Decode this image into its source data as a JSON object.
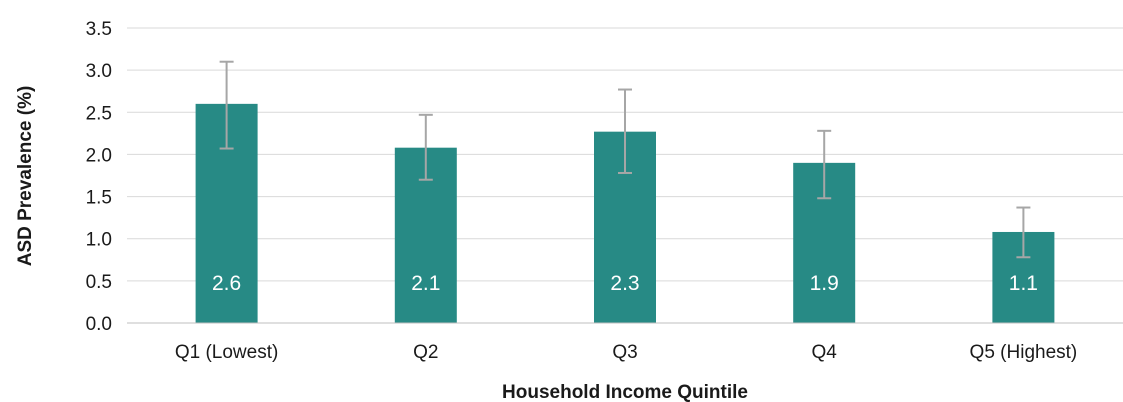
{
  "chart_data": {
    "type": "bar",
    "categories": [
      "Q1 (Lowest)",
      "Q2",
      "Q3",
      "Q4",
      "Q5 (Highest)"
    ],
    "values": [
      2.6,
      2.08,
      2.27,
      1.9,
      1.08
    ],
    "data_labels": [
      "2.6",
      "2.1",
      "2.3",
      "1.9",
      "1.1"
    ],
    "error_low": [
      2.07,
      1.7,
      1.78,
      1.48,
      0.78
    ],
    "error_high": [
      3.1,
      2.47,
      2.77,
      2.28,
      1.37
    ],
    "xlabel": "Household Income Quintile",
    "ylabel": "ASD Prevalence (%)",
    "ylim": [
      0,
      3.5
    ],
    "yticks": [
      "0.0",
      "0.5",
      "1.0",
      "1.5",
      "2.0",
      "2.5",
      "3.0",
      "3.5"
    ],
    "grid": true,
    "bar_color": "#278a85",
    "error_bar_color": "#a6a6a6",
    "grid_color": "#d9d9d9"
  }
}
